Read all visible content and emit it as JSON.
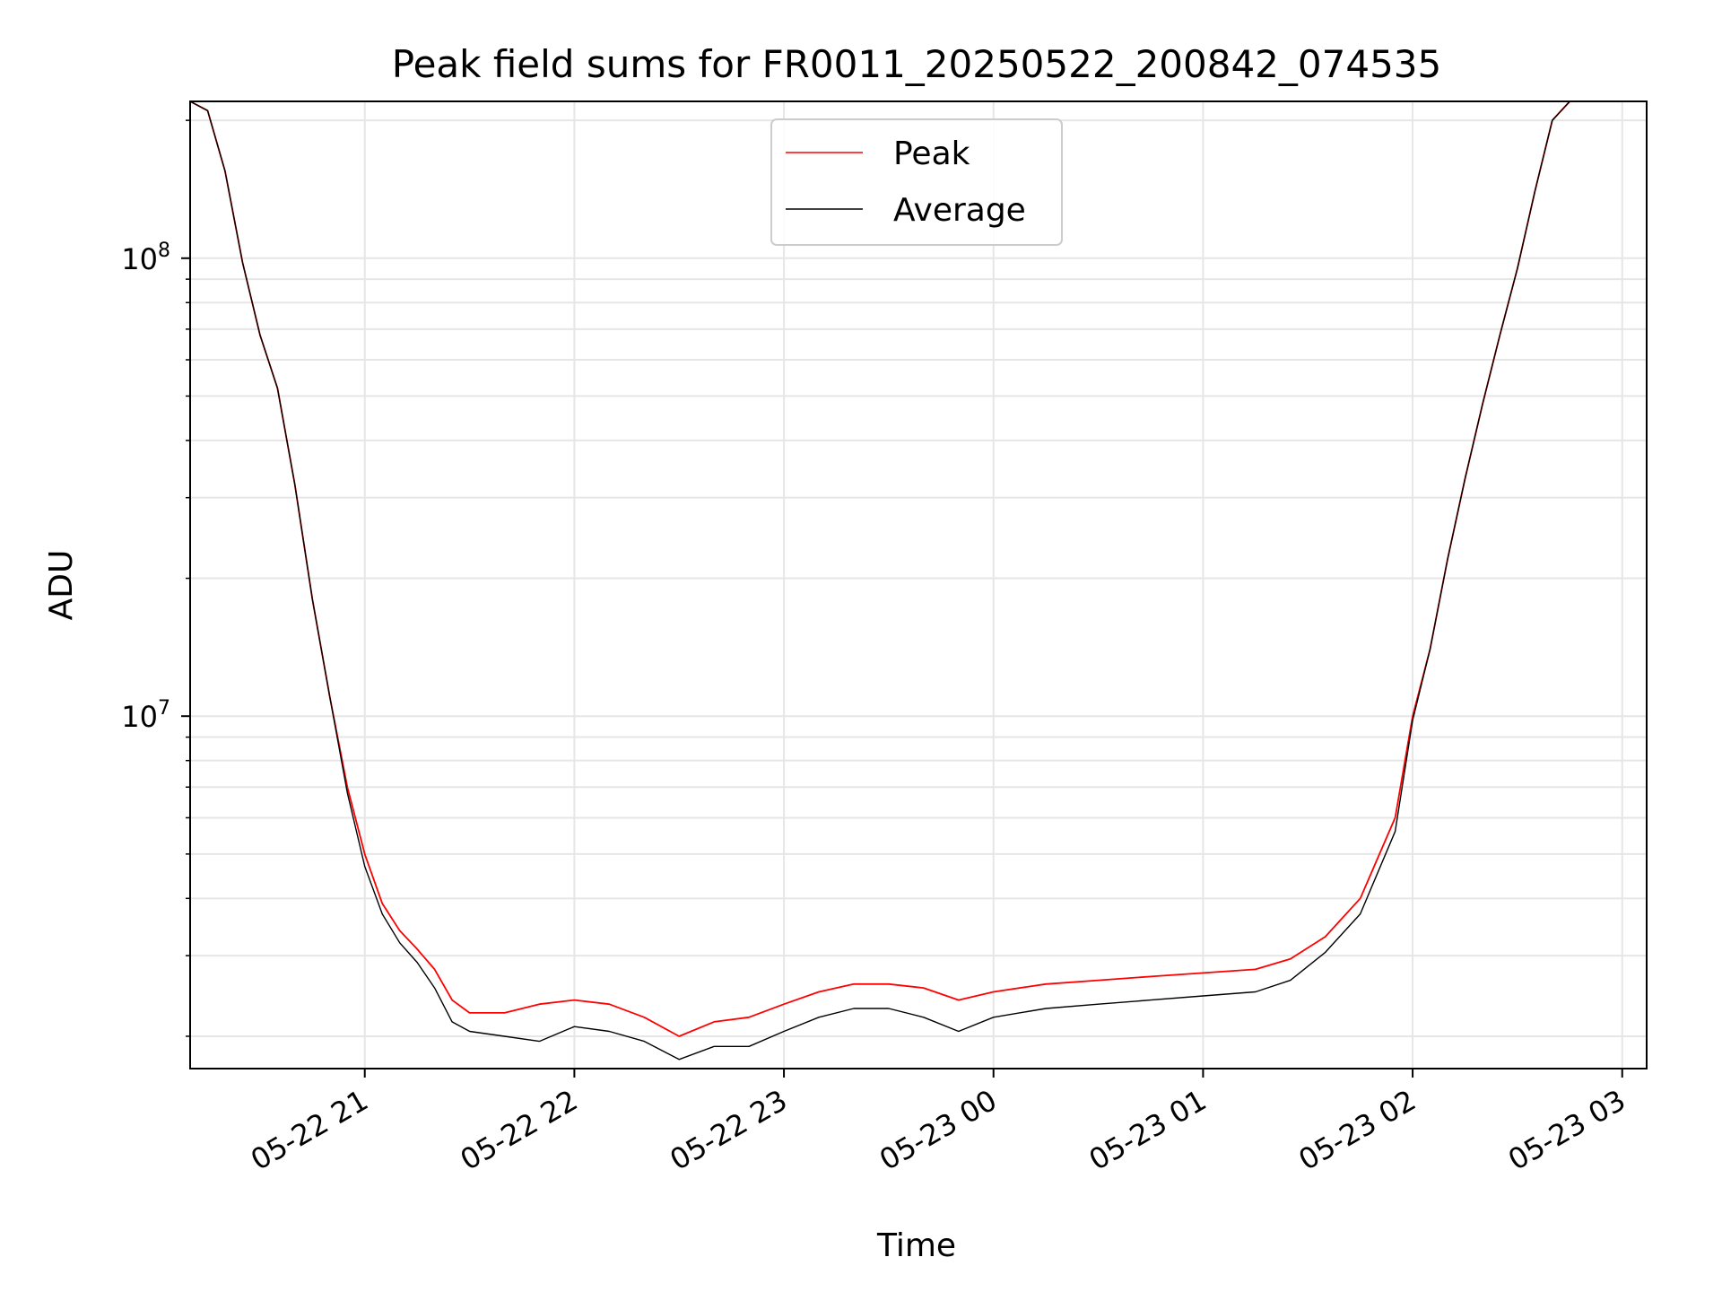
{
  "chart_data": {
    "type": "line",
    "title": "Peak field sums for FR0011_20250522_200842_074535",
    "xlabel": "Time",
    "ylabel": "ADU",
    "yscale": "log",
    "ylim": [
      1700000,
      220000000
    ],
    "xlim": [
      "2025-05-22 20:10",
      "2025-05-23 03:07"
    ],
    "x_ticks": [
      "05-22 21",
      "05-22 22",
      "05-22 23",
      "05-23 00",
      "05-23 01",
      "05-23 02",
      "05-23 03"
    ],
    "y_ticks": [
      {
        "value": 10000000,
        "base": "10",
        "exp": "7"
      },
      {
        "value": 100000000,
        "base": "10",
        "exp": "8"
      }
    ],
    "grid": true,
    "legend_position": "top-center",
    "series": [
      {
        "name": "Peak",
        "color": "#ff0000",
        "x": [
          "2025-05-22 20:10",
          "2025-05-22 20:15",
          "2025-05-22 20:20",
          "2025-05-22 20:25",
          "2025-05-22 20:30",
          "2025-05-22 20:35",
          "2025-05-22 20:40",
          "2025-05-22 20:45",
          "2025-05-22 20:50",
          "2025-05-22 20:55",
          "2025-05-22 21:00",
          "2025-05-22 21:05",
          "2025-05-22 21:10",
          "2025-05-22 21:15",
          "2025-05-22 21:20",
          "2025-05-22 21:25",
          "2025-05-22 21:30",
          "2025-05-22 21:40",
          "2025-05-22 21:50",
          "2025-05-22 22:00",
          "2025-05-22 22:10",
          "2025-05-22 22:20",
          "2025-05-22 22:30",
          "2025-05-22 22:40",
          "2025-05-22 22:50",
          "2025-05-22 23:00",
          "2025-05-22 23:10",
          "2025-05-22 23:20",
          "2025-05-22 23:30",
          "2025-05-22 23:40",
          "2025-05-22 23:50",
          "2025-05-23 00:00",
          "2025-05-23 00:15",
          "2025-05-23 00:30",
          "2025-05-23 00:45",
          "2025-05-23 01:00",
          "2025-05-23 01:15",
          "2025-05-23 01:25",
          "2025-05-23 01:35",
          "2025-05-23 01:45",
          "2025-05-23 01:55",
          "2025-05-23 02:00",
          "2025-05-23 02:05",
          "2025-05-23 02:10",
          "2025-05-23 02:15",
          "2025-05-23 02:20",
          "2025-05-23 02:25",
          "2025-05-23 02:30",
          "2025-05-23 02:35",
          "2025-05-23 02:40",
          "2025-05-23 02:45",
          "2025-05-23 02:50",
          "2025-05-23 02:55",
          "2025-05-23 03:00",
          "2025-05-23 03:05"
        ],
        "values": [
          220000000,
          210000000,
          155000000,
          98000000,
          68000000,
          52000000,
          32000000,
          18000000,
          11000000,
          7000000,
          5000000,
          3900000,
          3400000,
          3100000,
          2800000,
          2400000,
          2250000,
          2250000,
          2350000,
          2400000,
          2350000,
          2200000,
          2000000,
          2150000,
          2200000,
          2350000,
          2500000,
          2600000,
          2600000,
          2550000,
          2400000,
          2500000,
          2600000,
          2650000,
          2700000,
          2750000,
          2800000,
          2950000,
          3300000,
          4000000,
          6000000,
          10000000,
          14000000,
          22000000,
          33000000,
          48000000,
          68000000,
          95000000,
          140000000,
          200000000,
          220000000,
          220000000,
          220000000,
          220000000,
          220000000
        ]
      },
      {
        "name": "Average",
        "color": "#000000",
        "x": [
          "2025-05-22 20:10",
          "2025-05-22 20:15",
          "2025-05-22 20:20",
          "2025-05-22 20:25",
          "2025-05-22 20:30",
          "2025-05-22 20:35",
          "2025-05-22 20:40",
          "2025-05-22 20:45",
          "2025-05-22 20:50",
          "2025-05-22 20:55",
          "2025-05-22 21:00",
          "2025-05-22 21:05",
          "2025-05-22 21:10",
          "2025-05-22 21:15",
          "2025-05-22 21:20",
          "2025-05-22 21:25",
          "2025-05-22 21:30",
          "2025-05-22 21:40",
          "2025-05-22 21:50",
          "2025-05-22 22:00",
          "2025-05-22 22:10",
          "2025-05-22 22:20",
          "2025-05-22 22:30",
          "2025-05-22 22:40",
          "2025-05-22 22:50",
          "2025-05-22 23:00",
          "2025-05-22 23:10",
          "2025-05-22 23:20",
          "2025-05-22 23:30",
          "2025-05-22 23:40",
          "2025-05-22 23:50",
          "2025-05-23 00:00",
          "2025-05-23 00:15",
          "2025-05-23 00:30",
          "2025-05-23 00:45",
          "2025-05-23 01:00",
          "2025-05-23 01:15",
          "2025-05-23 01:25",
          "2025-05-23 01:35",
          "2025-05-23 01:45",
          "2025-05-23 01:55",
          "2025-05-23 02:00",
          "2025-05-23 02:05",
          "2025-05-23 02:10",
          "2025-05-23 02:15",
          "2025-05-23 02:20",
          "2025-05-23 02:25",
          "2025-05-23 02:30",
          "2025-05-23 02:35",
          "2025-05-23 02:40",
          "2025-05-23 02:45",
          "2025-05-23 02:50",
          "2025-05-23 02:55",
          "2025-05-23 03:00",
          "2025-05-23 03:05"
        ],
        "values": [
          220000000,
          210000000,
          155000000,
          98000000,
          68000000,
          52000000,
          32000000,
          18000000,
          11000000,
          6800000,
          4700000,
          3700000,
          3200000,
          2900000,
          2550000,
          2150000,
          2050000,
          2000000,
          1950000,
          2100000,
          2050000,
          1950000,
          1780000,
          1900000,
          1900000,
          2050000,
          2200000,
          2300000,
          2300000,
          2200000,
          2050000,
          2200000,
          2300000,
          2350000,
          2400000,
          2450000,
          2500000,
          2650000,
          3050000,
          3700000,
          5600000,
          9800000,
          14000000,
          22000000,
          33000000,
          48000000,
          68000000,
          95000000,
          140000000,
          200000000,
          220000000,
          220000000,
          220000000,
          220000000,
          220000000
        ]
      }
    ]
  }
}
